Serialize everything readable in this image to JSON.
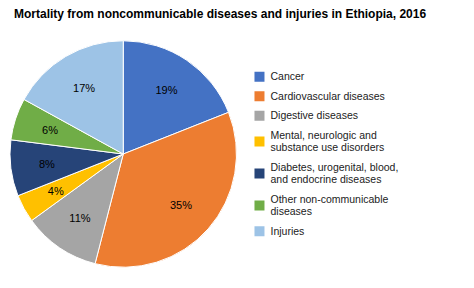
{
  "chart_data": {
    "type": "pie",
    "title": "Mortality from noncommunicable diseases and injuries in Ethiopia, 2016",
    "categories": [
      "Cancer",
      "Cardiovascular diseases",
      "Digestive diseases",
      "Mental, neurologic and\nsubstance use disorders",
      "Diabetes, urogenital, blood,\nand endocrine diseases",
      "Other non-communicable\ndiseases",
      "Injuries"
    ],
    "values": [
      19,
      35,
      11,
      4,
      8,
      6,
      17
    ],
    "value_labels": [
      "19%",
      "35%",
      "11%",
      "4%",
      "8%",
      "6%",
      "17%"
    ],
    "colors": [
      "#4472C4",
      "#ED7D31",
      "#A5A5A5",
      "#FFC000",
      "#264478",
      "#70AD47",
      "#9DC3E6"
    ],
    "data_labels": true,
    "legend": "right"
  }
}
